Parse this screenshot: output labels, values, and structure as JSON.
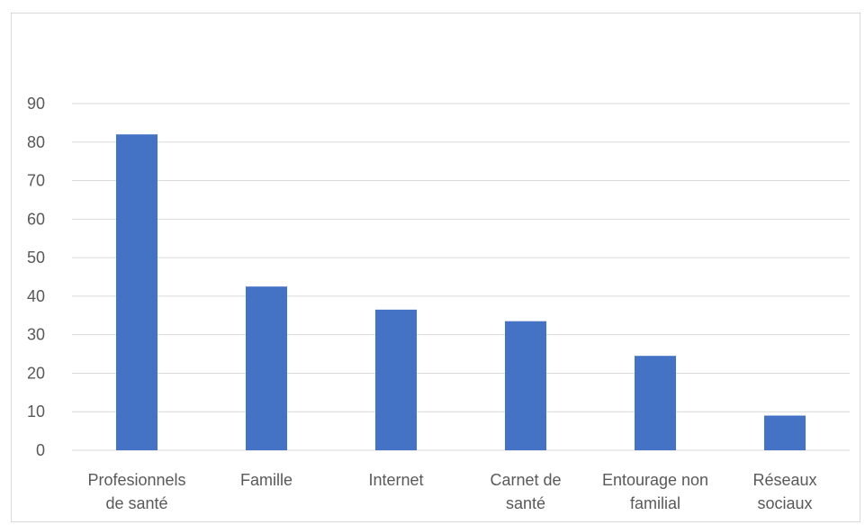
{
  "chart_data": {
    "type": "bar",
    "categories": [
      [
        "Profesionnels",
        "de santé"
      ],
      [
        "Famille"
      ],
      [
        "Internet"
      ],
      [
        "Carnet de",
        "santé"
      ],
      [
        "Entourage non",
        "familial"
      ],
      [
        "Réseaux",
        "sociaux"
      ]
    ],
    "values": [
      82,
      42.5,
      36.5,
      33.5,
      24.5,
      9
    ],
    "ylim": [
      0,
      90
    ],
    "yticks": [
      0,
      10,
      20,
      30,
      40,
      50,
      60,
      70,
      80,
      90
    ],
    "grid": true,
    "legend": "none",
    "bar_color": "#4472C4",
    "grid_color": "#d9d9d9",
    "title": "",
    "xlabel": "",
    "ylabel": ""
  }
}
